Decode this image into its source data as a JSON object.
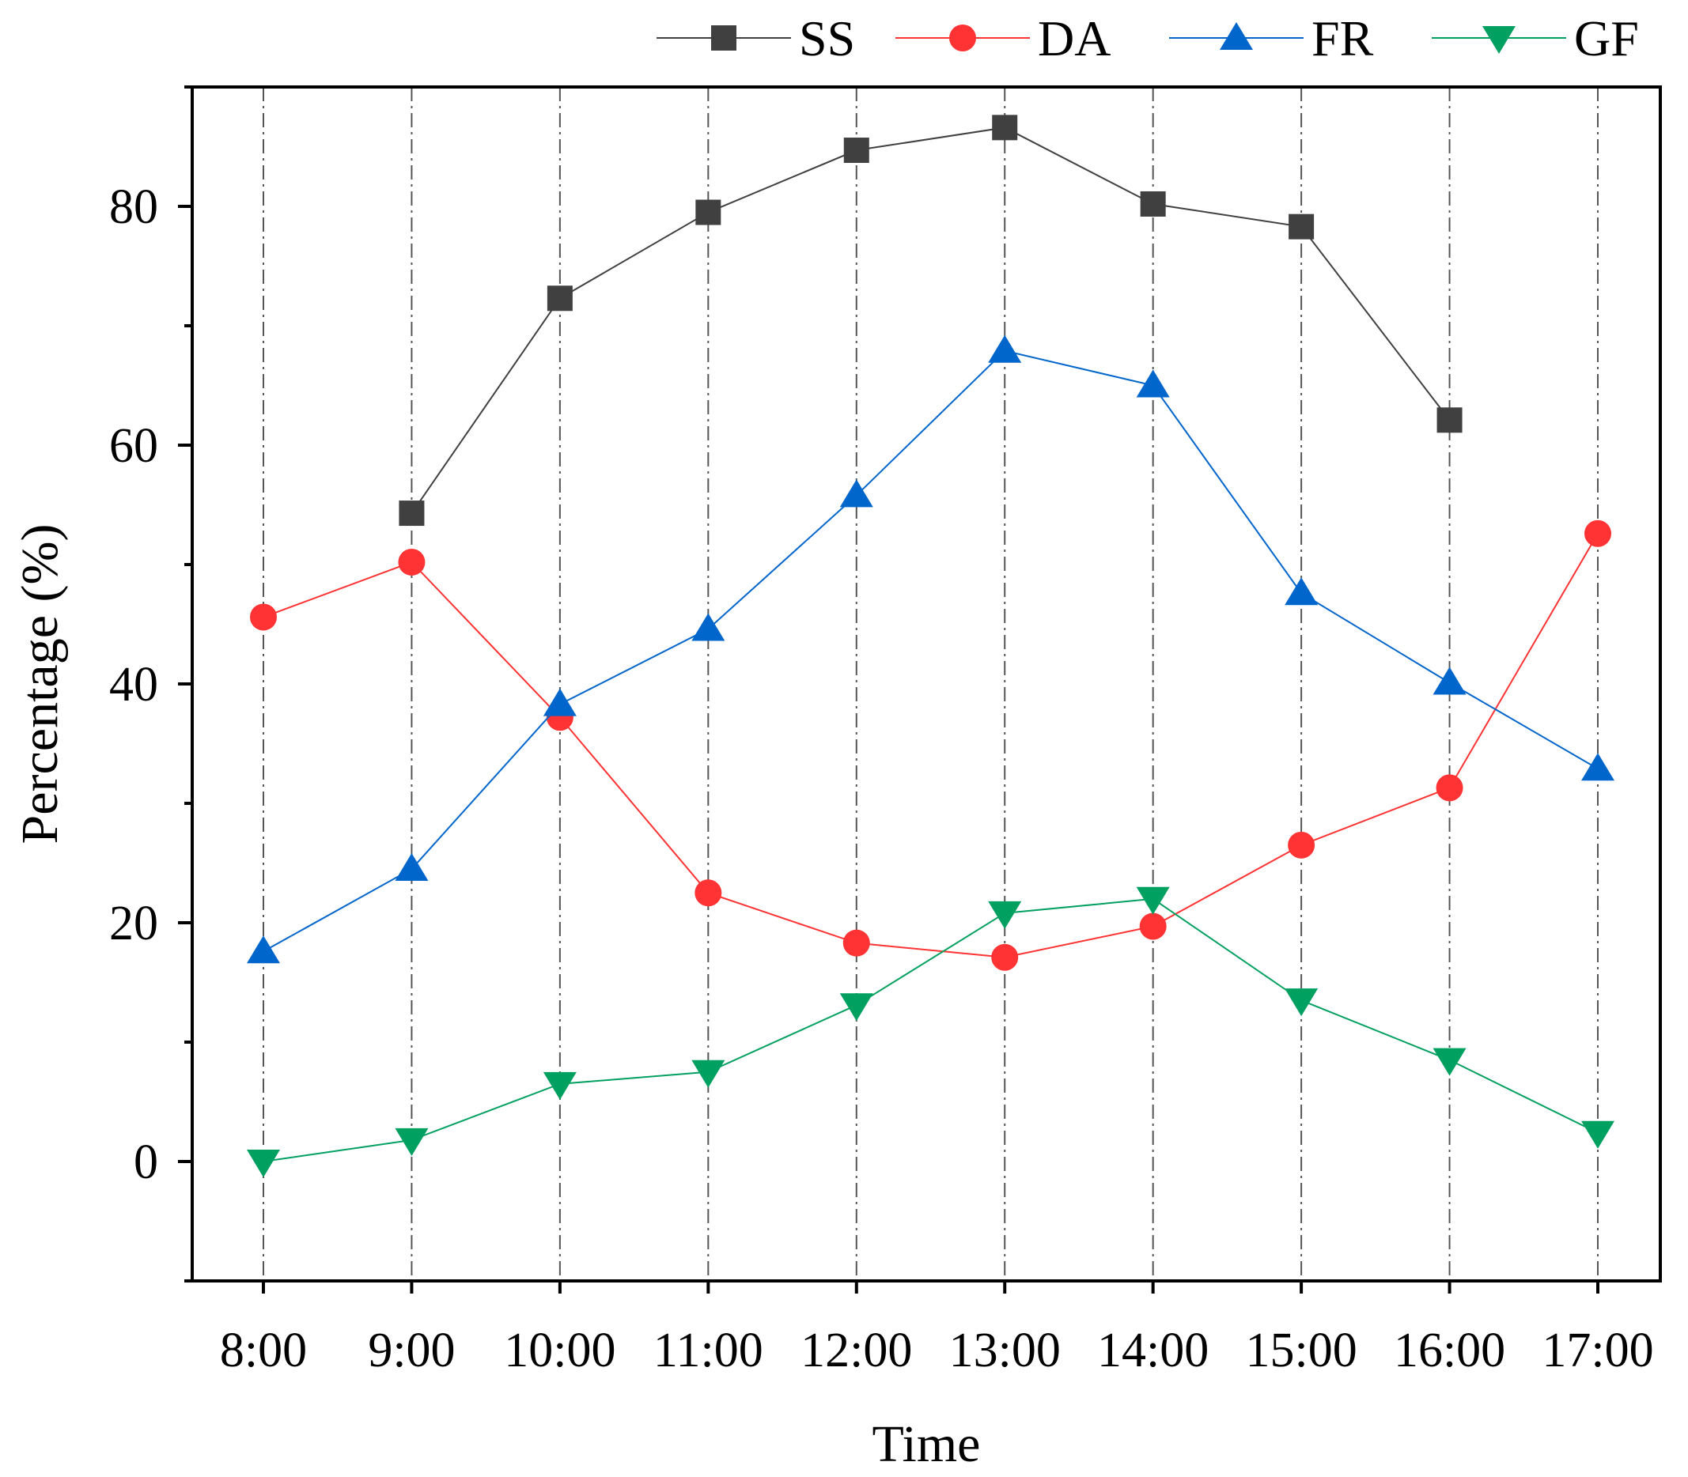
{
  "chart_data": {
    "type": "line",
    "title": "",
    "xlabel": "Time",
    "ylabel": "Percentage (%)",
    "categories": [
      "8:00",
      "9:00",
      "10:00",
      "11:00",
      "12:00",
      "13:00",
      "14:00",
      "15:00",
      "16:00",
      "17:00"
    ],
    "ylim": [
      -10,
      90
    ],
    "yticks": [
      0,
      20,
      40,
      60,
      80
    ],
    "grid": "vertical dash-dot lines at each category",
    "legend_position": "top, above plot",
    "series": [
      {
        "name": "SS",
        "color": "#404040",
        "marker": "square",
        "values": [
          null,
          54.3,
          72.3,
          79.5,
          84.7,
          86.6,
          80.2,
          78.3,
          62.1,
          null
        ]
      },
      {
        "name": "DA",
        "color": "#ff3333",
        "marker": "circle",
        "values": [
          45.6,
          50.2,
          37.2,
          22.5,
          18.3,
          17.1,
          19.7,
          26.5,
          31.3,
          52.6
        ]
      },
      {
        "name": "FR",
        "color": "#0066cc",
        "marker": "triangle-up",
        "values": [
          17.6,
          24.5,
          38.3,
          44.6,
          55.8,
          67.9,
          65.0,
          47.6,
          40.1,
          32.9
        ]
      },
      {
        "name": "GF",
        "color": "#00a060",
        "marker": "triangle-down",
        "values": [
          0.0,
          1.8,
          6.5,
          7.5,
          13.1,
          20.8,
          22.0,
          13.5,
          8.5,
          2.4
        ]
      }
    ]
  }
}
